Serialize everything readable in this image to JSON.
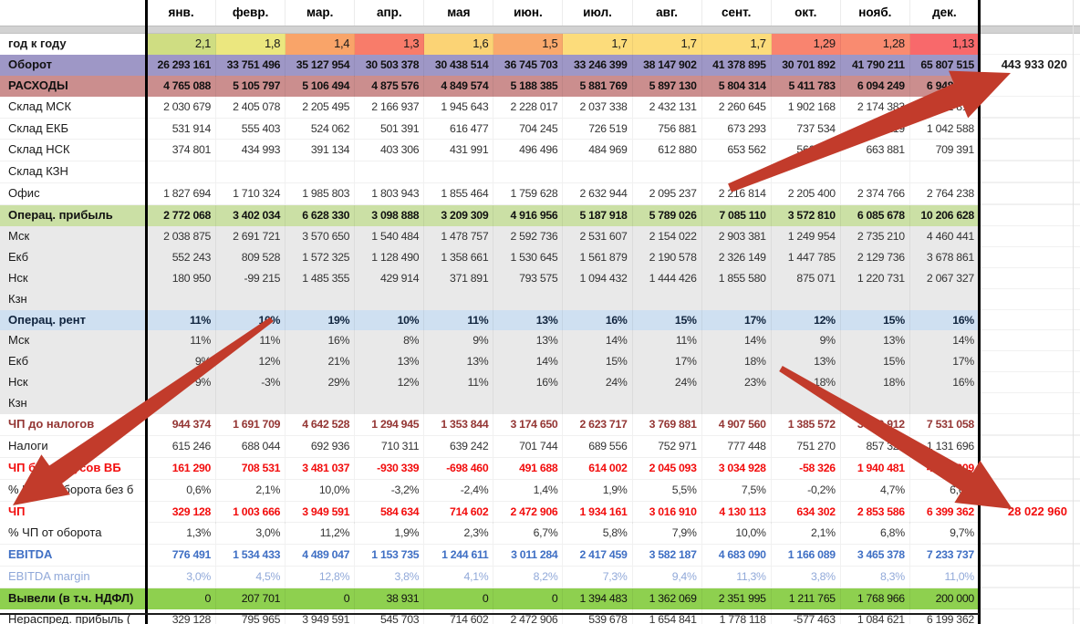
{
  "months": [
    "янв.",
    "февр.",
    "мар.",
    "апр.",
    "мая",
    "июн.",
    "июл.",
    "авг.",
    "сент.",
    "окт.",
    "нояб.",
    "дек."
  ],
  "grand_totals": {
    "turnover": "443 933 020",
    "net_profit": "28 022 960"
  },
  "yoy_cell_colors": [
    "#cfdd82",
    "#ebe77f",
    "#f9a469",
    "#f87c6a",
    "#fbd375",
    "#f9a96d",
    "#fcdc7b",
    "#fcdc7b",
    "#fcdc7b",
    "#f9846f",
    "#f98b70",
    "#f8696b"
  ],
  "rows": [
    {
      "label": "год к году",
      "cls": "yoy",
      "values": [
        "2,1",
        "1,8",
        "1,4",
        "1,3",
        "1,6",
        "1,5",
        "1,7",
        "1,7",
        "1,7",
        "1,29",
        "1,28",
        "1,13"
      ],
      "total": ""
    },
    {
      "label": "Оборот",
      "cls": "rev",
      "values": [
        "26 293 161",
        "33 751 496",
        "35 127 954",
        "30 503 378",
        "30 438 514",
        "36 745 703",
        "33 246 399",
        "38 147 902",
        "41 378 895",
        "30 701 892",
        "41 790 211",
        "65 807 515"
      ],
      "total": "443 933 020"
    },
    {
      "label": "РАСХОДЫ",
      "cls": "exp",
      "values": [
        "4 765 088",
        "5 105 797",
        "5 106 494",
        "4 875 576",
        "4 849 574",
        "5 188 385",
        "5 881 769",
        "5 897 130",
        "5 804 314",
        "5 411 783",
        "6 094 249",
        "6 948 035"
      ],
      "total": ""
    },
    {
      "label": "Склад МСК",
      "cls": "plain",
      "values": [
        "2 030 679",
        "2 405 078",
        "2 205 495",
        "2 166 937",
        "1 945 643",
        "2 228 017",
        "2 037 338",
        "2 432 131",
        "2 260 645",
        "1 902 168",
        "2 174 383",
        "2 431 818"
      ],
      "total": ""
    },
    {
      "label": "Склад ЕКБ",
      "cls": "plain",
      "values": [
        "531 914",
        "555 403",
        "524 062",
        "501 391",
        "616 477",
        "704 245",
        "726 519",
        "756 881",
        "673 293",
        "737 534",
        "881 219",
        "1 042 588"
      ],
      "total": ""
    },
    {
      "label": "Склад НСК",
      "cls": "plain",
      "values": [
        "374 801",
        "434 993",
        "391 134",
        "403 306",
        "431 991",
        "496 496",
        "484 969",
        "612 880",
        "653 562",
        "566 681",
        "663 881",
        "709 391"
      ],
      "total": ""
    },
    {
      "label": "Склад КЗН",
      "cls": "plain",
      "values": [
        "",
        "",
        "",
        "",
        "",
        "",
        "",
        "",
        "",
        "",
        "",
        ""
      ],
      "total": ""
    },
    {
      "label": "Офис",
      "cls": "plain",
      "values": [
        "1 827 694",
        "1 710 324",
        "1 985 803",
        "1 803 943",
        "1 855 464",
        "1 759 628",
        "2 632 944",
        "2 095 237",
        "2 216 814",
        "2 205 400",
        "2 374 766",
        "2 764 238"
      ],
      "total": ""
    },
    {
      "label": "Операц. прибыль",
      "cls": "opsec",
      "values": [
        "2 772 068",
        "3 402 034",
        "6 628 330",
        "3 098 888",
        "3 209 309",
        "4 916 956",
        "5 187 918",
        "5 789 026",
        "7 085 110",
        "3 572 810",
        "6 085 678",
        "10 206 628"
      ],
      "total": ""
    },
    {
      "label": "Мск",
      "cls": "gray",
      "values": [
        "2 038 875",
        "2 691 721",
        "3 570 650",
        "1 540 484",
        "1 478 757",
        "2 592 736",
        "2 531 607",
        "2 154 022",
        "2 903 381",
        "1 249 954",
        "2 735 210",
        "4 460 441"
      ],
      "total": ""
    },
    {
      "label": "Екб",
      "cls": "gray",
      "values": [
        "552 243",
        "809 528",
        "1 572 325",
        "1 128 490",
        "1 358 661",
        "1 530 645",
        "1 561 879",
        "2 190 578",
        "2 326 149",
        "1 447 785",
        "2 129 736",
        "3 678 861"
      ],
      "total": ""
    },
    {
      "label": "Нск",
      "cls": "gray",
      "values": [
        "180 950",
        "-99 215",
        "1 485 355",
        "429 914",
        "371 891",
        "793 575",
        "1 094 432",
        "1 444 426",
        "1 855 580",
        "875 071",
        "1 220 731",
        "2 067 327"
      ],
      "total": ""
    },
    {
      "label": "Кзн",
      "cls": "gray",
      "values": [
        "",
        "",
        "",
        "",
        "",
        "",
        "",
        "",
        "",
        "",
        "",
        ""
      ],
      "total": ""
    },
    {
      "label": "Операц. рент",
      "cls": "rentsec",
      "values": [
        "11%",
        "10%",
        "19%",
        "10%",
        "11%",
        "13%",
        "16%",
        "15%",
        "17%",
        "12%",
        "15%",
        "16%"
      ],
      "total": ""
    },
    {
      "label": "Мск",
      "cls": "gray",
      "values": [
        "11%",
        "11%",
        "16%",
        "8%",
        "9%",
        "13%",
        "14%",
        "11%",
        "14%",
        "9%",
        "13%",
        "14%"
      ],
      "total": ""
    },
    {
      "label": "Екб",
      "cls": "gray",
      "values": [
        "9%",
        "12%",
        "21%",
        "13%",
        "13%",
        "14%",
        "15%",
        "17%",
        "18%",
        "13%",
        "15%",
        "17%"
      ],
      "total": ""
    },
    {
      "label": "Нск",
      "cls": "gray",
      "values": [
        "9%",
        "-3%",
        "29%",
        "12%",
        "11%",
        "16%",
        "24%",
        "24%",
        "23%",
        "18%",
        "18%",
        "16%"
      ],
      "total": ""
    },
    {
      "label": "Кзн",
      "cls": "gray",
      "values": [
        "",
        "",
        "",
        "",
        "",
        "",
        "",
        "",
        "",
        "",
        "",
        ""
      ],
      "total": ""
    },
    {
      "label": "ЧП до налогов",
      "cls": "npt",
      "values": [
        "944 374",
        "1 691 709",
        "4 642 528",
        "1 294 945",
        "1 353 844",
        "3 174 650",
        "2 623 717",
        "3 769 881",
        "4 907 560",
        "1 385 572",
        "3 710 912",
        "7 531 058"
      ],
      "total": ""
    },
    {
      "label": "Налоги",
      "cls": "plain",
      "values": [
        "615 246",
        "688 044",
        "692 936",
        "710 311",
        "639 242",
        "701 744",
        "689 556",
        "752 971",
        "777 448",
        "751 270",
        "857 326",
        "1 131 696"
      ],
      "total": ""
    },
    {
      "label": "ЧП без бонусов ВБ",
      "cls": "redbold",
      "values": [
        "161 290",
        "708 531",
        "3 481 037",
        "-930 339",
        "-698 460",
        "491 688",
        "614 002",
        "2 045 093",
        "3 034 928",
        "-58 326",
        "1 940 481",
        "4 193 909"
      ],
      "total": ""
    },
    {
      "label": "% ЧП от оборота без б",
      "cls": "plain",
      "values": [
        "0,6%",
        "2,1%",
        "10,0%",
        "-3,2%",
        "-2,4%",
        "1,4%",
        "1,9%",
        "5,5%",
        "7,5%",
        "-0,2%",
        "4,7%",
        "6,6%"
      ],
      "total": ""
    },
    {
      "label": "ЧП",
      "cls": "redbold",
      "values": [
        "329 128",
        "1 003 666",
        "3 949 591",
        "584 634",
        "714 602",
        "2 472 906",
        "1 934 161",
        "3 016 910",
        "4 130 113",
        "634 302",
        "2 853 586",
        "6 399 362"
      ],
      "total": "28 022 960"
    },
    {
      "label": "% ЧП от оборота",
      "cls": "plain",
      "values": [
        "1,3%",
        "3,0%",
        "11,2%",
        "1,9%",
        "2,3%",
        "6,7%",
        "5,8%",
        "7,9%",
        "10,0%",
        "2,1%",
        "6,8%",
        "9,7%"
      ],
      "total": ""
    },
    {
      "label": "EBITDA",
      "cls": "ebitda",
      "values": [
        "776 491",
        "1 534 433",
        "4 489 047",
        "1 153 735",
        "1 244 611",
        "3 011 284",
        "2 417 459",
        "3 582 187",
        "4 683 090",
        "1 166 089",
        "3 465 378",
        "7 233 737"
      ],
      "total": ""
    },
    {
      "label": "EBITDA margin",
      "cls": "ebitdam",
      "values": [
        "3,0%",
        "4,5%",
        "12,8%",
        "3,8%",
        "4,1%",
        "8,2%",
        "7,3%",
        "9,4%",
        "11,3%",
        "3,8%",
        "8,3%",
        "11,0%"
      ],
      "total": ""
    },
    {
      "label": "Вывели (в т.ч. НДФЛ)",
      "cls": "withdraw",
      "values": [
        "0",
        "207 701",
        "0",
        "38 931",
        "0",
        "0",
        "1 394 483",
        "1 362 069",
        "2 351 995",
        "1 211 765",
        "1 768 966",
        "200 000"
      ],
      "total": ""
    },
    {
      "label": "Нераспред. прибыль (",
      "cls": "plain",
      "values": [
        "329 128",
        "795 965",
        "3 949 591",
        "545 703",
        "714 602",
        "2 472 906",
        "539 678",
        "1 654 841",
        "1 778 118",
        "-577 463",
        "1 084 621",
        "6 199 362"
      ],
      "total": ""
    }
  ],
  "annotations": {
    "arrow_color": "#c23b2b",
    "arrow_count": 3
  }
}
